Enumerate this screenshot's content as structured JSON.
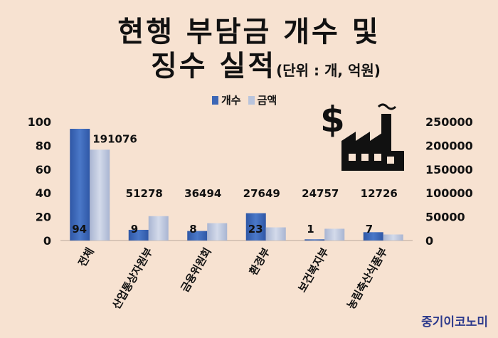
{
  "title": {
    "line1": "현행 부담금 개수 및",
    "line2": "징수 실적",
    "unit": "(단위 : 개, 억원)"
  },
  "legend": {
    "count_label": "개수",
    "amount_label": "금액"
  },
  "brand": "중기이코노미",
  "icons": [
    "dollar-icon",
    "factory-icon"
  ],
  "colors": {
    "background": "#f7e2d1",
    "count_series": "#3d67b6",
    "amount_series": "#b9c4dc",
    "text": "#111111"
  },
  "chart_data": {
    "type": "bar",
    "categories": [
      "전체",
      "산업통상자원부",
      "금융위원회",
      "환경부",
      "보건복지부",
      "농림축산식품부"
    ],
    "series": [
      {
        "name": "개수",
        "axis": "left",
        "values": [
          94,
          9,
          8,
          23,
          1,
          7
        ]
      },
      {
        "name": "금액",
        "axis": "right",
        "values": [
          191076,
          51278,
          36494,
          27649,
          24757,
          12726
        ]
      }
    ],
    "y_left": {
      "min": 0,
      "max": 100,
      "ticks": [
        0,
        20,
        40,
        60,
        80,
        100
      ]
    },
    "y_right": {
      "min": 0,
      "max": 250000,
      "ticks": [
        0,
        50000,
        100000,
        150000,
        200000,
        250000
      ]
    },
    "legend_position": "top",
    "grid": false
  }
}
